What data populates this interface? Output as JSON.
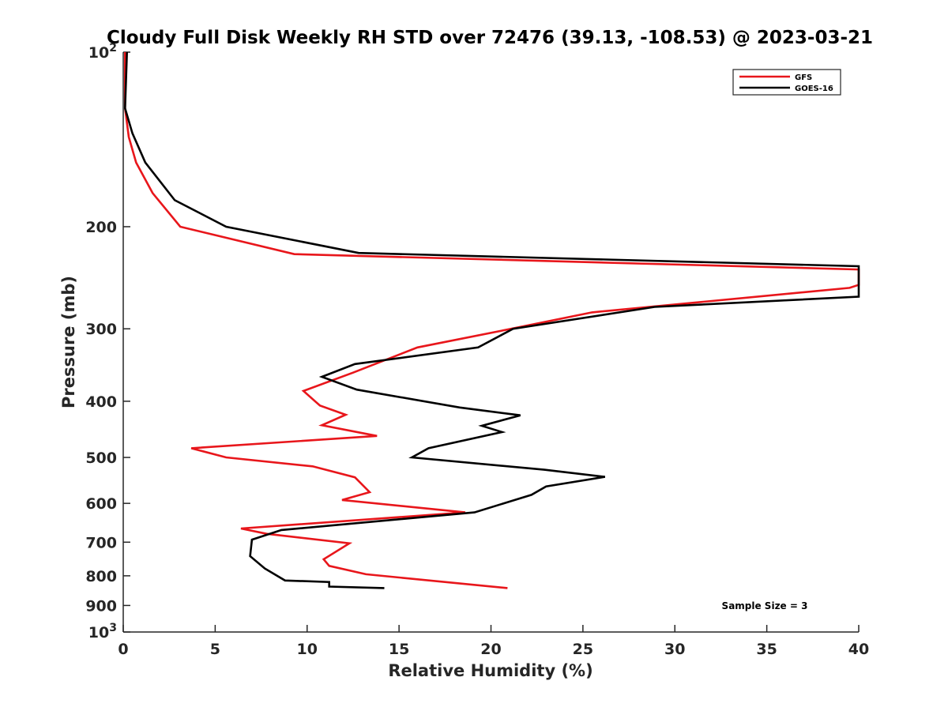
{
  "chart_data": {
    "type": "line",
    "title": "Cloudy Full Disk Weekly RH STD over 72476 (39.13, -108.53) @ 2023-03-21",
    "xlabel": "Relative Humidity (%)",
    "ylabel": "Pressure (mb)",
    "xlim": [
      0,
      40
    ],
    "ylim": [
      100,
      1000
    ],
    "y_scale": "log",
    "y_reversed": true,
    "grid": false,
    "legend_position": "top-right",
    "x_ticks": [
      0,
      5,
      10,
      15,
      20,
      25,
      30,
      35,
      40
    ],
    "y_ticks": [
      {
        "value": 100,
        "label": "10",
        "sup": "2"
      },
      {
        "value": 200,
        "label": "200",
        "sup": ""
      },
      {
        "value": 300,
        "label": "300",
        "sup": ""
      },
      {
        "value": 400,
        "label": "400",
        "sup": ""
      },
      {
        "value": 500,
        "label": "500",
        "sup": ""
      },
      {
        "value": 600,
        "label": "600",
        "sup": ""
      },
      {
        "value": 700,
        "label": "700",
        "sup": ""
      },
      {
        "value": 800,
        "label": "800",
        "sup": ""
      },
      {
        "value": 900,
        "label": "900",
        "sup": ""
      },
      {
        "value": 1000,
        "label": "10",
        "sup": "3"
      }
    ],
    "annotation": "Sample Size = 3",
    "series": [
      {
        "name": "GFS",
        "color": "#e8161b",
        "points": [
          [
            0.1,
            100
          ],
          [
            0.1,
            125
          ],
          [
            0.3,
            140
          ],
          [
            0.7,
            155
          ],
          [
            1.6,
            175
          ],
          [
            3.1,
            200
          ],
          [
            9.3,
            223
          ],
          [
            40,
            237
          ],
          [
            40,
            252
          ],
          [
            39.5,
            255
          ],
          [
            25.5,
            281
          ],
          [
            21.1,
            300
          ],
          [
            16.0,
            323
          ],
          [
            12.5,
            357
          ],
          [
            9.8,
            384
          ],
          [
            10.7,
            407
          ],
          [
            12.1,
            422
          ],
          [
            10.8,
            440
          ],
          [
            13.8,
            459
          ],
          [
            3.7,
            482
          ],
          [
            5.6,
            500
          ],
          [
            10.3,
            518
          ],
          [
            12.6,
            541
          ],
          [
            13.4,
            574
          ],
          [
            11.9,
            592
          ],
          [
            18.6,
            622
          ],
          [
            6.4,
            663
          ],
          [
            7.8,
            677
          ],
          [
            12.3,
            703
          ],
          [
            10.9,
            749
          ],
          [
            11.2,
            769
          ],
          [
            13.2,
            795
          ],
          [
            20.9,
            840
          ]
        ]
      },
      {
        "name": "GOES-16",
        "color": "#000000",
        "points": [
          [
            0.2,
            100
          ],
          [
            0.1,
            125
          ],
          [
            0.5,
            138
          ],
          [
            1.2,
            155
          ],
          [
            2.8,
            180
          ],
          [
            5.6,
            200
          ],
          [
            12.8,
            222
          ],
          [
            40,
            234
          ],
          [
            40,
            264
          ],
          [
            28.9,
            275
          ],
          [
            21.2,
            300
          ],
          [
            19.3,
            323
          ],
          [
            12.6,
            345
          ],
          [
            10.8,
            363
          ],
          [
            12.7,
            382
          ],
          [
            18.3,
            410
          ],
          [
            21.6,
            423
          ],
          [
            19.5,
            441
          ],
          [
            20.6,
            452
          ],
          [
            16.6,
            482
          ],
          [
            15.7,
            500
          ],
          [
            22.9,
            525
          ],
          [
            26.2,
            540
          ],
          [
            23.0,
            561
          ],
          [
            22.2,
            580
          ],
          [
            19.1,
            622
          ],
          [
            8.6,
            667
          ],
          [
            7.0,
            693
          ],
          [
            6.9,
            740
          ],
          [
            7.7,
            777
          ],
          [
            8.8,
            815
          ],
          [
            11.2,
            820
          ],
          [
            11.2,
            835
          ],
          [
            14.2,
            840
          ]
        ]
      }
    ]
  }
}
